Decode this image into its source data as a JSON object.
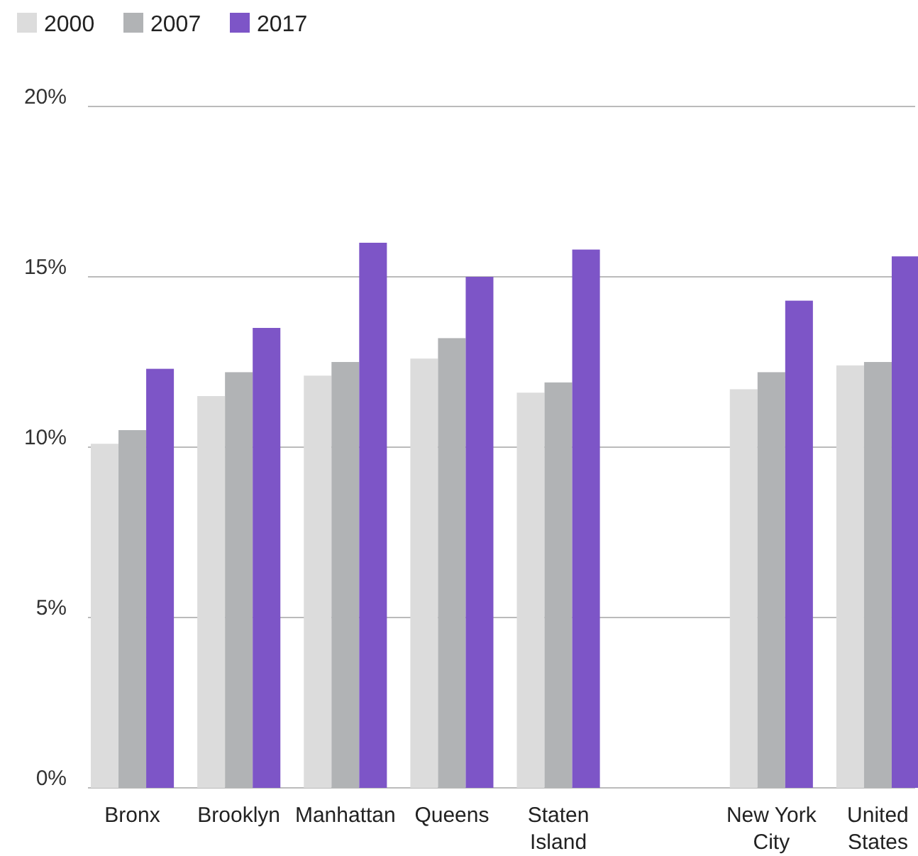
{
  "chart_data": {
    "type": "bar",
    "categories": [
      "Bronx",
      "Brooklyn",
      "Manhattan",
      "Queens",
      "Staten Island",
      null,
      "New York City",
      "United States"
    ],
    "series": [
      {
        "name": "2000",
        "color": "#dcdcdc",
        "values": [
          10.1,
          11.5,
          12.1,
          12.6,
          11.6,
          null,
          11.7,
          12.4
        ]
      },
      {
        "name": "2007",
        "color": "#b1b3b5",
        "values": [
          10.5,
          12.2,
          12.5,
          13.2,
          11.9,
          null,
          12.2,
          12.5
        ]
      },
      {
        "name": "2017",
        "color": "#7d55c7",
        "values": [
          12.3,
          13.5,
          16.0,
          15.0,
          15.8,
          null,
          14.3,
          15.6
        ]
      }
    ],
    "ylim": [
      0,
      20
    ],
    "yticks": [
      {
        "value": 0,
        "label": "0%"
      },
      {
        "value": 5,
        "label": "5%"
      },
      {
        "value": 10,
        "label": "10%"
      },
      {
        "value": 15,
        "label": "15%"
      },
      {
        "value": 20,
        "label": "20%"
      }
    ],
    "grid": "y",
    "legend": "top left"
  }
}
